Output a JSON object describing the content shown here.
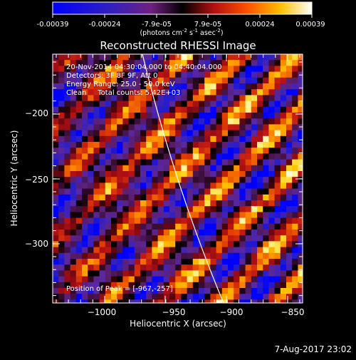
{
  "colorbar": {
    "ticks": [
      "-0.00039",
      "-0.00024",
      "-7.9e-05",
      "7.9e-05",
      "0.00024",
      "0.00039"
    ],
    "units_main": "(photons cm",
    "units_exp1": "-2",
    "units_mid": " s",
    "units_exp2": "-1",
    "units_end": " asec",
    "units_exp3": "-2",
    "units_close": ")"
  },
  "plot": {
    "title": "Reconstructed RHESSI Image",
    "xlabel": "Heliocentric X (arcsec)",
    "ylabel": "Heliocentric Y (arcsec)",
    "x_ticks": [
      "−1000",
      "−950",
      "−900",
      "−850"
    ],
    "y_ticks": [
      "−200",
      "−250",
      "−300"
    ],
    "info_lines": [
      "20-Nov-2014 04:30:04.000 to 04:40:04.000",
      "Detectors: 3F 8F 9F, Att 0",
      "Energy Range: 25.0 - 50.0 keV",
      "Clean     Total counts: 5.42E+03"
    ],
    "peak_label": "Position of Peak = [-967,-257]"
  },
  "footer": {
    "timestamp": "7-Aug-2017 23:02"
  },
  "colors": {
    "background": "#000000",
    "text": "#ffffff",
    "limb": "#ffffff"
  }
}
